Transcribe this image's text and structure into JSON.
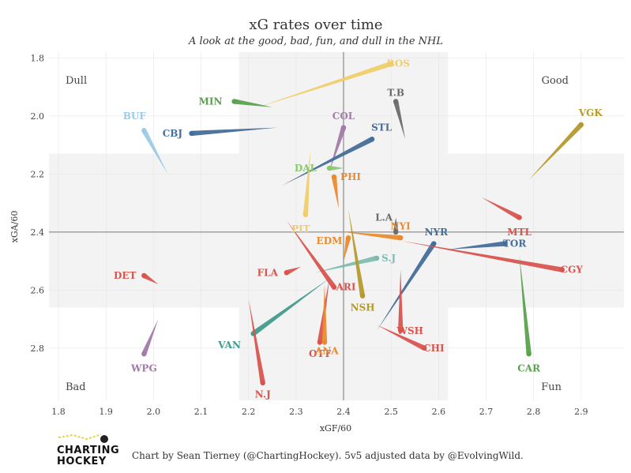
{
  "chart_data": {
    "type": "scatter",
    "title": "xG rates over time",
    "subtitle": "A look at the good, bad, fun, and dull in the NHL",
    "xlabel": "xGF/60",
    "ylabel": "xGA/60",
    "xlim": [
      1.78,
      2.99
    ],
    "ylim": [
      1.78,
      2.98
    ],
    "y_reversed": true,
    "x_ticks": [
      "1.8",
      "1.9",
      "2.0",
      "2.1",
      "2.2",
      "2.3",
      "2.4",
      "2.5",
      "2.6",
      "2.7",
      "2.8",
      "2.9"
    ],
    "x_tick_values": [
      1.8,
      1.9,
      2.0,
      2.1,
      2.2,
      2.3,
      2.4,
      2.5,
      2.6,
      2.7,
      2.8,
      2.9
    ],
    "y_ticks": [
      "1.8",
      "2.0",
      "2.2",
      "2.4",
      "2.6",
      "2.8"
    ],
    "y_tick_values": [
      1.8,
      2.0,
      2.2,
      2.4,
      2.6,
      2.8
    ],
    "reference_x": 2.4,
    "reference_y": 2.4,
    "band_x": [
      2.18,
      2.62
    ],
    "band_y": [
      2.13,
      2.66
    ],
    "quadrants": {
      "dull": "Dull",
      "good": "Good",
      "bad": "Bad",
      "fun": "Fun"
    },
    "series": [
      {
        "name": "BOS",
        "color": "#f0cd6a",
        "start": [
          2.22,
          1.97
        ],
        "end": [
          2.5,
          1.82
        ],
        "label": [
          2.515,
          1.82
        ]
      },
      {
        "name": "T.B",
        "color": "#6b6b6b",
        "start": [
          2.53,
          2.08
        ],
        "end": [
          2.51,
          1.95
        ],
        "label": [
          2.51,
          1.92
        ]
      },
      {
        "name": "VGK",
        "color": "#b59a2e",
        "start": [
          2.79,
          2.22
        ],
        "end": [
          2.9,
          2.03
        ],
        "label": [
          2.92,
          1.99
        ]
      },
      {
        "name": "MIN",
        "color": "#5aa24e",
        "start": [
          2.25,
          1.97
        ],
        "end": [
          2.17,
          1.95
        ],
        "label": [
          2.12,
          1.95
        ]
      },
      {
        "name": "BUF",
        "color": "#9ccae6",
        "start": [
          2.03,
          2.2
        ],
        "end": [
          1.98,
          2.05
        ],
        "label": [
          1.96,
          2.0
        ]
      },
      {
        "name": "CBJ",
        "color": "#466e9a",
        "start": [
          2.26,
          2.04
        ],
        "end": [
          2.08,
          2.06
        ],
        "label": [
          2.04,
          2.06
        ]
      },
      {
        "name": "COL",
        "color": "#a27baa",
        "start": [
          2.37,
          2.19
        ],
        "end": [
          2.4,
          2.04
        ],
        "label": [
          2.4,
          2.0
        ]
      },
      {
        "name": "STL",
        "color": "#466e9a",
        "start": [
          2.27,
          2.24
        ],
        "end": [
          2.46,
          2.08
        ],
        "label": [
          2.48,
          2.04
        ]
      },
      {
        "name": "DAL",
        "color": "#8cc872",
        "start": [
          2.4,
          2.18
        ],
        "end": [
          2.37,
          2.18
        ],
        "label": [
          2.32,
          2.18
        ]
      },
      {
        "name": "PHI",
        "color": "#e98b2e",
        "start": [
          2.39,
          2.32
        ],
        "end": [
          2.38,
          2.21
        ],
        "label": [
          2.415,
          2.21
        ]
      },
      {
        "name": "PIT",
        "color": "#f0cd6a",
        "start": [
          2.33,
          2.12
        ],
        "end": [
          2.32,
          2.34
        ],
        "label": [
          2.31,
          2.39
        ]
      },
      {
        "name": "L.A",
        "color": "#6b6b6b",
        "start": [
          2.51,
          2.35
        ],
        "end": [
          2.51,
          2.4
        ],
        "label": [
          2.485,
          2.35
        ]
      },
      {
        "name": "NYI",
        "color": "#e98b2e",
        "start": [
          2.4,
          2.4
        ],
        "end": [
          2.52,
          2.42
        ],
        "label": [
          2.52,
          2.38
        ]
      },
      {
        "name": "MTL",
        "color": "#d9544f",
        "start": [
          2.69,
          2.28
        ],
        "end": [
          2.77,
          2.35
        ],
        "label": [
          2.77,
          2.4
        ]
      },
      {
        "name": "EDM",
        "color": "#e98b2e",
        "start": [
          2.4,
          2.5
        ],
        "end": [
          2.41,
          2.42
        ],
        "label": [
          2.37,
          2.43
        ]
      },
      {
        "name": "NYR",
        "color": "#466e9a",
        "start": [
          2.47,
          2.74
        ],
        "end": [
          2.59,
          2.44
        ],
        "label": [
          2.595,
          2.4
        ]
      },
      {
        "name": "TOR",
        "color": "#466e9a",
        "start": [
          2.62,
          2.46
        ],
        "end": [
          2.74,
          2.44
        ],
        "label": [
          2.76,
          2.44
        ]
      },
      {
        "name": "CGY",
        "color": "#d9544f",
        "start": [
          2.52,
          2.43
        ],
        "end": [
          2.86,
          2.53
        ],
        "label": [
          2.88,
          2.53
        ]
      },
      {
        "name": "S.J",
        "color": "#7fbcb0",
        "start": [
          2.34,
          2.54
        ],
        "end": [
          2.47,
          2.49
        ],
        "label": [
          2.495,
          2.49
        ]
      },
      {
        "name": "FLA",
        "color": "#d9544f",
        "start": [
          2.31,
          2.52
        ],
        "end": [
          2.28,
          2.54
        ],
        "label": [
          2.24,
          2.54
        ]
      },
      {
        "name": "ARI",
        "color": "#d9544f",
        "start": [
          2.28,
          2.36
        ],
        "end": [
          2.38,
          2.59
        ],
        "label": [
          2.405,
          2.59
        ]
      },
      {
        "name": "NSH",
        "color": "#b59a2e",
        "start": [
          2.41,
          2.32
        ],
        "end": [
          2.44,
          2.62
        ],
        "label": [
          2.44,
          2.66
        ]
      },
      {
        "name": "DET",
        "color": "#d9544f",
        "start": [
          2.01,
          2.58
        ],
        "end": [
          1.98,
          2.55
        ],
        "label": [
          1.94,
          2.55
        ]
      },
      {
        "name": "WSH",
        "color": "#d9544f",
        "start": [
          2.52,
          2.53
        ],
        "end": [
          2.52,
          2.74
        ],
        "label": [
          2.54,
          2.74
        ]
      },
      {
        "name": "CHI",
        "color": "#d9544f",
        "start": [
          2.47,
          2.72
        ],
        "end": [
          2.57,
          2.8
        ],
        "label": [
          2.59,
          2.8
        ]
      },
      {
        "name": "VAN",
        "color": "#429b8c",
        "start": [
          2.37,
          2.56
        ],
        "end": [
          2.21,
          2.75
        ],
        "label": [
          2.16,
          2.79
        ]
      },
      {
        "name": "OTT",
        "color": "#d9544f",
        "start": [
          2.37,
          2.56
        ],
        "end": [
          2.35,
          2.78
        ],
        "label": [
          2.35,
          2.82
        ]
      },
      {
        "name": "ANA",
        "color": "#e98b2e",
        "start": [
          2.36,
          2.58
        ],
        "end": [
          2.36,
          2.78
        ],
        "label": [
          2.365,
          2.81
        ]
      },
      {
        "name": "CAR",
        "color": "#5aa24e",
        "start": [
          2.77,
          2.48
        ],
        "end": [
          2.79,
          2.82
        ],
        "label": [
          2.79,
          2.87
        ]
      },
      {
        "name": "WPG",
        "color": "#a27baa",
        "start": [
          2.01,
          2.7
        ],
        "end": [
          1.98,
          2.82
        ],
        "label": [
          1.98,
          2.87
        ]
      },
      {
        "name": "N.J",
        "color": "#d9544f",
        "start": [
          2.2,
          2.63
        ],
        "end": [
          2.23,
          2.92
        ],
        "label": [
          2.23,
          2.96
        ]
      }
    ]
  },
  "caption": "Chart by Sean Tierney (@ChartingHockey). 5v5 adjusted data by @EvolvingWild.",
  "logo": {
    "line1": "CHARTING",
    "line2": "HOCKEY"
  }
}
